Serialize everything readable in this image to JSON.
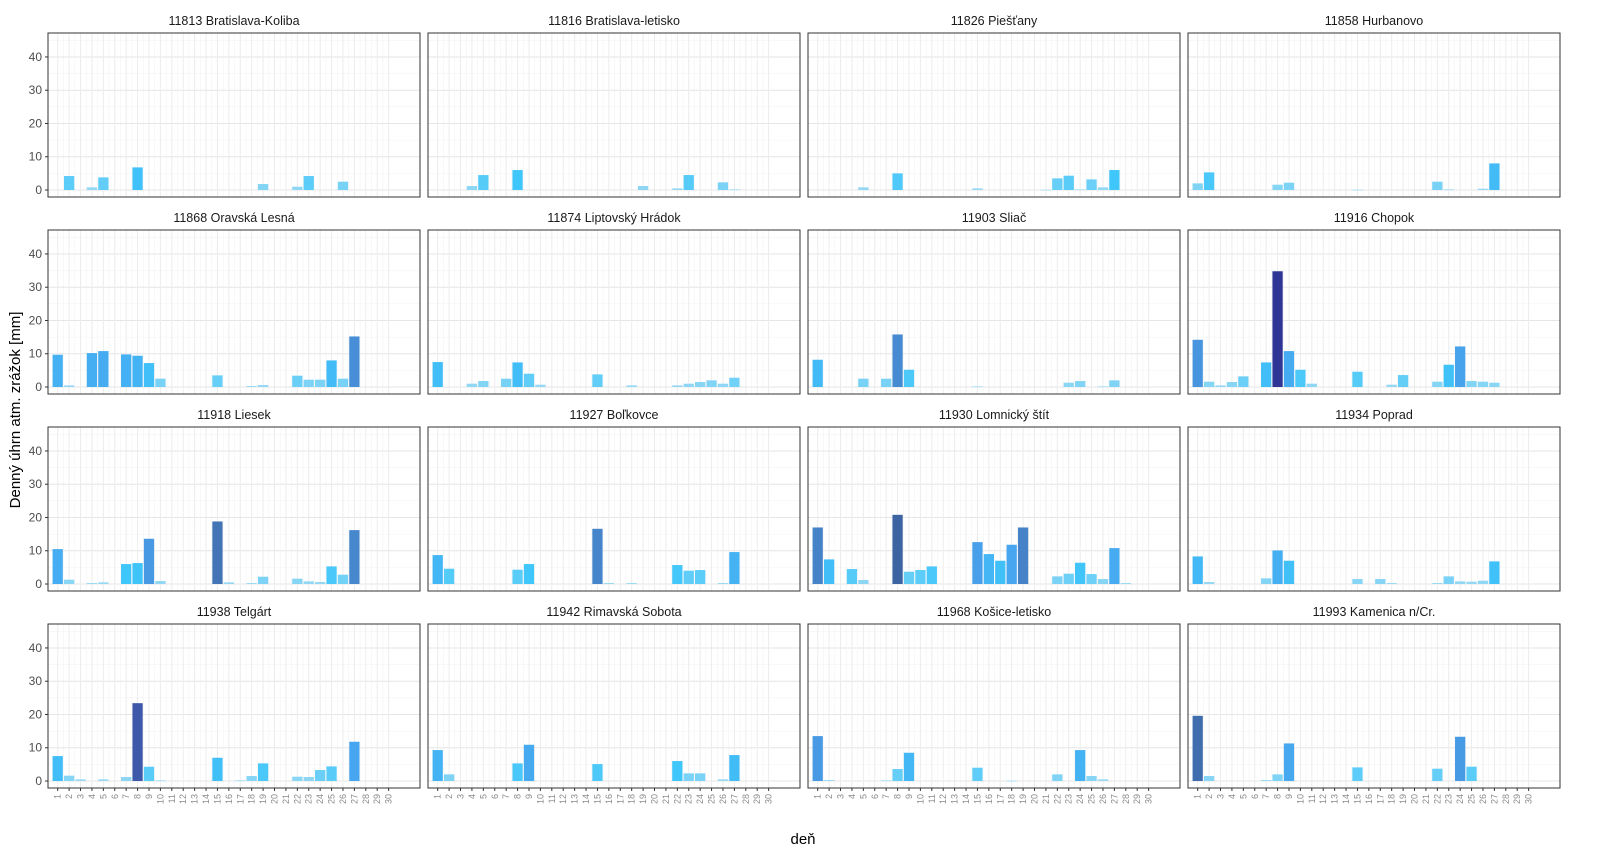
{
  "chart_data": {
    "type": "bar",
    "facet": "station",
    "xlabel": "deň",
    "ylabel": "Denný úhrn atm. zrážok [mm]",
    "x": [
      1,
      2,
      3,
      4,
      5,
      6,
      7,
      8,
      9,
      10,
      11,
      12,
      13,
      14,
      15,
      16,
      17,
      18,
      19,
      20,
      21,
      22,
      23,
      24,
      25,
      26,
      27,
      28,
      29,
      30
    ],
    "ylim": [
      -2.1,
      47.2
    ],
    "yticks": [
      0,
      10,
      20,
      30,
      40
    ],
    "grid": true,
    "color_scale": [
      [
        0,
        "#9fdaf3"
      ],
      [
        6,
        "#3fc6fa"
      ],
      [
        12,
        "#48a4ef"
      ],
      [
        17,
        "#4682c8"
      ],
      [
        21,
        "#3c62a0"
      ],
      [
        24,
        "#3f55ad"
      ],
      [
        35,
        "#2e3494"
      ]
    ],
    "panels": [
      {
        "station": "11813 Bratislava-Koliba",
        "values": [
          0,
          4.2,
          0,
          0.8,
          3.8,
          0,
          0,
          6.8,
          0,
          0,
          0,
          0,
          0,
          0,
          0,
          0,
          0,
          0,
          1.8,
          0,
          0,
          1.0,
          4.2,
          0,
          0,
          2.5,
          0,
          0,
          0,
          0
        ]
      },
      {
        "station": "11816 Bratislava-letisko",
        "values": [
          0,
          0,
          0,
          1.2,
          4.5,
          0,
          0,
          6.0,
          0,
          0,
          0,
          0,
          0,
          0,
          0,
          0,
          0,
          0,
          1.2,
          0,
          0,
          0.5,
          4.5,
          0,
          0,
          2.3,
          0.2,
          0,
          0,
          0
        ]
      },
      {
        "station": "11826 Piešťany",
        "values": [
          0,
          0,
          0,
          0,
          0.8,
          0,
          0,
          5.0,
          0,
          0,
          0,
          0,
          0,
          0,
          0.5,
          0,
          0,
          0,
          0,
          0,
          0.1,
          3.5,
          4.3,
          0.2,
          3.2,
          0.8,
          6.0,
          0,
          0,
          0
        ]
      },
      {
        "station": "11858 Hurbanovo",
        "values": [
          2.0,
          5.3,
          0,
          0,
          0,
          0,
          0,
          1.6,
          2.2,
          0,
          0,
          0,
          0,
          0,
          0.1,
          0,
          0,
          0,
          0,
          0,
          0,
          2.5,
          0.2,
          0,
          0,
          0.4,
          8.0,
          0,
          0,
          0
        ]
      },
      {
        "station": "11868 Oravská Lesná",
        "values": [
          9.7,
          0.5,
          0,
          10.2,
          10.8,
          0,
          9.8,
          9.4,
          7.2,
          2.5,
          0,
          0,
          0,
          0,
          3.5,
          0,
          0,
          0.3,
          0.6,
          0,
          0,
          3.4,
          2.2,
          2.2,
          8.0,
          2.5,
          15.2,
          0,
          0,
          0
        ]
      },
      {
        "station": "11874 Liptovský Hrádok",
        "values": [
          7.5,
          0,
          0,
          1.0,
          1.8,
          0,
          2.5,
          7.4,
          4.0,
          0.7,
          0,
          0,
          0,
          0,
          3.8,
          0,
          0,
          0.5,
          0,
          0,
          0,
          0.5,
          1.0,
          1.5,
          2.0,
          1.0,
          2.8,
          0,
          0,
          0
        ]
      },
      {
        "station": "11903 Sliač",
        "values": [
          8.2,
          0,
          0,
          0,
          2.5,
          0,
          2.5,
          15.8,
          5.2,
          0,
          0,
          0,
          0,
          0,
          0.2,
          0,
          0,
          0,
          0,
          0,
          0,
          0,
          1.3,
          1.8,
          0,
          0.2,
          2.0,
          0,
          0,
          0
        ]
      },
      {
        "station": "11916 Chopok",
        "values": [
          14.2,
          1.6,
          0.5,
          1.5,
          3.2,
          0,
          7.4,
          34.8,
          10.8,
          5.2,
          1.0,
          0,
          0,
          0,
          4.6,
          0,
          0,
          0.7,
          3.6,
          0,
          0,
          1.6,
          6.7,
          12.2,
          1.8,
          1.6,
          1.3,
          0,
          0,
          0
        ]
      },
      {
        "station": "11918 Liesek",
        "values": [
          10.5,
          1.3,
          0,
          0.3,
          0.5,
          0,
          6.0,
          6.3,
          13.6,
          0.9,
          0,
          0,
          0,
          0,
          18.8,
          0.5,
          0,
          0.3,
          2.2,
          0,
          0,
          1.6,
          0.8,
          0.6,
          5.3,
          2.8,
          16.2,
          0,
          0,
          0
        ]
      },
      {
        "station": "11927 Boľkovce",
        "values": [
          8.7,
          4.6,
          0,
          0,
          0,
          0,
          0,
          4.3,
          6.0,
          0,
          0,
          0,
          0,
          0,
          16.6,
          0.3,
          0,
          0.3,
          0,
          0,
          0,
          5.7,
          4.0,
          4.2,
          0,
          0.3,
          9.6,
          0,
          0,
          0
        ]
      },
      {
        "station": "11930 Lomnický štít",
        "values": [
          17.0,
          7.4,
          0,
          4.5,
          1.2,
          0,
          0,
          20.8,
          3.7,
          4.2,
          5.3,
          0,
          0,
          0,
          12.6,
          9.0,
          7.0,
          11.8,
          17.0,
          0,
          0,
          2.3,
          3.1,
          6.4,
          3.0,
          1.5,
          10.8,
          0.3,
          0,
          0
        ]
      },
      {
        "station": "11934 Poprad",
        "values": [
          8.3,
          0.6,
          0,
          0,
          0,
          0,
          1.7,
          10.1,
          7.0,
          0,
          0,
          0,
          0,
          0,
          1.5,
          0,
          1.5,
          0.3,
          0,
          0,
          0,
          0.3,
          2.3,
          0.8,
          0.7,
          1.0,
          6.8,
          0,
          0,
          0
        ]
      },
      {
        "station": "11938 Telgárt",
        "values": [
          7.5,
          1.6,
          0.5,
          0,
          0.5,
          0,
          1.2,
          23.4,
          4.3,
          0.2,
          0,
          0,
          0,
          0,
          7.0,
          0,
          0.2,
          1.5,
          5.3,
          0,
          0,
          1.3,
          1.2,
          3.3,
          4.4,
          0,
          11.8,
          0,
          0,
          0
        ]
      },
      {
        "station": "11942 Rimavská Sobota",
        "values": [
          9.3,
          2.0,
          0,
          0,
          0,
          0,
          0,
          5.3,
          10.9,
          0,
          0,
          0,
          0,
          0,
          5.1,
          0,
          0,
          0,
          0,
          0,
          0,
          6.0,
          2.3,
          2.3,
          0,
          0.5,
          7.8,
          0,
          0,
          0
        ]
      },
      {
        "station": "11968 Košice-letisko",
        "values": [
          13.5,
          0.3,
          0,
          0,
          0,
          0,
          0.2,
          3.6,
          8.5,
          0,
          0,
          0,
          0,
          0,
          4.0,
          0,
          0,
          0.1,
          0,
          0,
          0,
          2.0,
          0,
          9.3,
          1.5,
          0.5,
          0,
          0,
          0,
          0
        ]
      },
      {
        "station": "11993 Kamenica n/Cr.",
        "values": [
          19.6,
          1.5,
          0,
          0,
          0,
          0,
          0.3,
          2.0,
          11.3,
          0,
          0,
          0,
          0,
          0,
          4.1,
          0,
          0,
          0,
          0,
          0,
          0,
          3.7,
          0,
          13.3,
          4.3,
          0,
          0,
          0,
          0,
          0
        ]
      }
    ]
  }
}
